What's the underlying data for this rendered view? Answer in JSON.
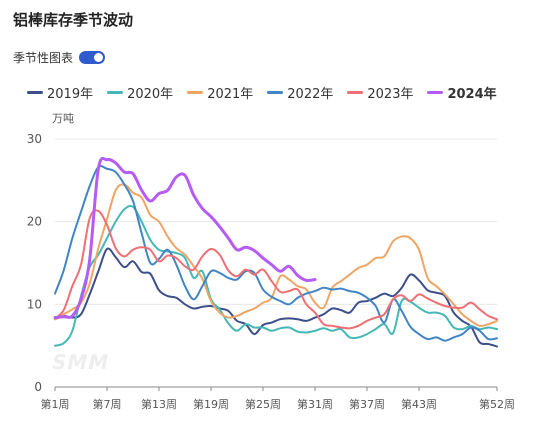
{
  "page": {
    "title": "铝棒库存季节波动"
  },
  "toggle": {
    "label": "季节性图表",
    "on": true
  },
  "watermark": "SMM",
  "chart_data": {
    "type": "line",
    "ylabel": "万吨",
    "ylim": [
      0,
      30
    ],
    "yticks": [
      0,
      10,
      20,
      30
    ],
    "xlim": [
      1,
      52
    ],
    "xticks": [
      {
        "week": 1,
        "label": "第1周"
      },
      {
        "week": 7,
        "label": "第7周"
      },
      {
        "week": 13,
        "label": "第13周"
      },
      {
        "week": 19,
        "label": "第19周"
      },
      {
        "week": 25,
        "label": "第25周"
      },
      {
        "week": 31,
        "label": "第31周"
      },
      {
        "week": 37,
        "label": "第37周"
      },
      {
        "week": 43,
        "label": "第43周"
      },
      {
        "week": 52,
        "label": "第52周"
      }
    ],
    "grid": true,
    "legend_position": "top",
    "series": [
      {
        "name": "2019年",
        "color": "#3c4f8a",
        "width": 2,
        "bold": false,
        "x": [
          1,
          2,
          3,
          4,
          5,
          6,
          7,
          8,
          9,
          10,
          11,
          12,
          13,
          14,
          15,
          16,
          17,
          18,
          19,
          20,
          21,
          22,
          23,
          24,
          25,
          26,
          27,
          28,
          29,
          30,
          31,
          32,
          33,
          34,
          35,
          36,
          37,
          38,
          39,
          40,
          41,
          42,
          43,
          44,
          45,
          46,
          47,
          48,
          49,
          50,
          51,
          52
        ],
        "y": [
          8.2,
          8.6,
          8.4,
          8.8,
          11.2,
          14.0,
          16.7,
          15.7,
          14.5,
          15.2,
          13.9,
          13.7,
          11.7,
          11.0,
          10.8,
          10.0,
          9.5,
          9.7,
          9.8,
          9.5,
          9.2,
          8.0,
          7.6,
          6.4,
          7.5,
          7.8,
          8.2,
          8.3,
          8.2,
          8.0,
          8.4,
          8.8,
          9.5,
          9.3,
          9.0,
          10.2,
          10.4,
          10.8,
          11.3,
          11.0,
          12.0,
          13.6,
          12.9,
          11.7,
          11.4,
          11.0,
          9.0,
          8.0,
          7.3,
          5.4,
          5.2,
          4.9
        ]
      },
      {
        "name": "2020年",
        "color": "#45b8b6",
        "width": 2,
        "bold": false,
        "x": [
          1,
          2,
          3,
          4,
          5,
          6,
          7,
          8,
          9,
          10,
          11,
          12,
          13,
          14,
          15,
          16,
          17,
          18,
          19,
          20,
          21,
          22,
          23,
          24,
          25,
          26,
          27,
          28,
          29,
          30,
          31,
          32,
          33,
          34,
          35,
          36,
          37,
          38,
          39,
          40,
          41,
          42,
          43,
          44,
          45,
          46,
          47,
          48,
          49,
          50,
          51,
          52
        ],
        "y": [
          5.0,
          5.3,
          6.8,
          11.0,
          14.5,
          16.0,
          18.0,
          20.0,
          21.5,
          21.8,
          20.0,
          17.8,
          16.6,
          16.4,
          16.2,
          15.6,
          13.2,
          14.0,
          10.6,
          9.4,
          7.7,
          6.8,
          7.6,
          7.2,
          7.2,
          6.8,
          7.1,
          7.2,
          6.7,
          6.6,
          6.8,
          7.1,
          6.8,
          7.0,
          6.0,
          6.0,
          6.4,
          7.0,
          7.6,
          6.5,
          10.4,
          10.3,
          9.6,
          9.0,
          9.0,
          8.6,
          7.2,
          7.0,
          7.4,
          7.0,
          7.2,
          7.0
        ]
      },
      {
        "name": "2021年",
        "color": "#eea564",
        "width": 2,
        "bold": false,
        "x": [
          1,
          2,
          3,
          4,
          5,
          6,
          7,
          8,
          9,
          10,
          11,
          12,
          13,
          14,
          15,
          16,
          17,
          18,
          19,
          20,
          21,
          22,
          23,
          24,
          25,
          26,
          27,
          28,
          29,
          30,
          31,
          32,
          33,
          34,
          35,
          36,
          37,
          38,
          39,
          40,
          41,
          42,
          43,
          44,
          45,
          46,
          47,
          48,
          49,
          50,
          51,
          52
        ],
        "y": [
          8.2,
          8.8,
          9.4,
          10.2,
          12.5,
          16.8,
          20.3,
          23.8,
          24.5,
          23.5,
          22.9,
          20.8,
          20.0,
          18.2,
          16.8,
          16.0,
          14.6,
          13.1,
          10.4,
          9.0,
          8.4,
          8.6,
          9.1,
          9.5,
          10.2,
          10.8,
          13.4,
          13.0,
          12.2,
          11.8,
          10.2,
          9.6,
          12.0,
          12.8,
          13.6,
          14.4,
          14.8,
          15.6,
          15.8,
          17.6,
          18.2,
          18.0,
          16.6,
          13.2,
          12.2,
          11.2,
          10.0,
          8.8,
          8.0,
          7.4,
          7.6,
          8.0
        ]
      },
      {
        "name": "2022年",
        "color": "#4185c4",
        "width": 2,
        "bold": false,
        "x": [
          1,
          2,
          3,
          4,
          5,
          6,
          7,
          8,
          9,
          10,
          11,
          12,
          13,
          14,
          15,
          16,
          17,
          18,
          19,
          20,
          21,
          22,
          23,
          24,
          25,
          26,
          27,
          28,
          29,
          30,
          31,
          32,
          33,
          34,
          35,
          36,
          37,
          38,
          39,
          40,
          41,
          42,
          43,
          44,
          45,
          46,
          47,
          48,
          49,
          50,
          51,
          52
        ],
        "y": [
          11.3,
          14.1,
          18.0,
          21.2,
          24.3,
          26.6,
          26.4,
          26.0,
          24.5,
          22.5,
          18.6,
          15.0,
          15.5,
          16.6,
          14.8,
          12.2,
          10.6,
          12.2,
          14.0,
          13.8,
          13.2,
          13.0,
          14.0,
          13.8,
          11.8,
          10.9,
          10.4,
          10.0,
          10.8,
          11.3,
          11.6,
          12.0,
          11.8,
          11.9,
          11.6,
          11.4,
          10.8,
          9.8,
          7.8,
          10.6,
          9.2,
          7.3,
          6.4,
          5.8,
          6.0,
          5.6,
          6.0,
          6.4,
          7.2,
          6.8,
          5.8,
          5.9
        ]
      },
      {
        "name": "2023年",
        "color": "#ee6f74",
        "width": 2,
        "bold": false,
        "x": [
          1,
          2,
          3,
          4,
          5,
          6,
          7,
          8,
          9,
          10,
          11,
          12,
          13,
          14,
          15,
          16,
          17,
          18,
          19,
          20,
          21,
          22,
          23,
          24,
          25,
          26,
          27,
          28,
          29,
          30,
          31,
          32,
          33,
          34,
          35,
          36,
          37,
          38,
          39,
          40,
          41,
          42,
          43,
          44,
          45,
          46,
          47,
          48,
          49,
          50,
          51,
          52
        ],
        "y": [
          8.3,
          9.3,
          12.2,
          14.8,
          20.4,
          21.3,
          19.6,
          16.8,
          15.8,
          16.6,
          16.9,
          16.6,
          15.2,
          15.9,
          15.6,
          14.6,
          14.2,
          15.8,
          16.7,
          16.0,
          14.1,
          13.4,
          14.2,
          13.6,
          14.2,
          12.8,
          11.5,
          11.6,
          11.8,
          10.0,
          9.0,
          7.6,
          7.4,
          7.2,
          7.1,
          7.4,
          8.0,
          8.4,
          8.8,
          10.6,
          11.1,
          10.4,
          11.2,
          10.7,
          10.2,
          9.8,
          9.6,
          9.6,
          10.2,
          9.4,
          8.6,
          8.2
        ]
      },
      {
        "name": "2024年",
        "color": "#b65cf6",
        "width": 3,
        "bold": true,
        "x": [
          1,
          2,
          3,
          4,
          5,
          6,
          7,
          8,
          9,
          10,
          11,
          12,
          13,
          14,
          15,
          16,
          17,
          18,
          19,
          20,
          21,
          22,
          23,
          24,
          25,
          26,
          27,
          28,
          29,
          30,
          31
        ],
        "y": [
          8.4,
          8.5,
          8.6,
          10.6,
          15.4,
          26.4,
          27.5,
          27.1,
          26.0,
          25.8,
          23.8,
          22.5,
          23.4,
          23.8,
          25.4,
          25.6,
          23.2,
          21.6,
          20.6,
          19.4,
          18.0,
          16.6,
          16.9,
          16.5,
          15.6,
          14.8,
          14.0,
          14.6,
          13.5,
          12.9,
          13.0
        ]
      }
    ]
  }
}
